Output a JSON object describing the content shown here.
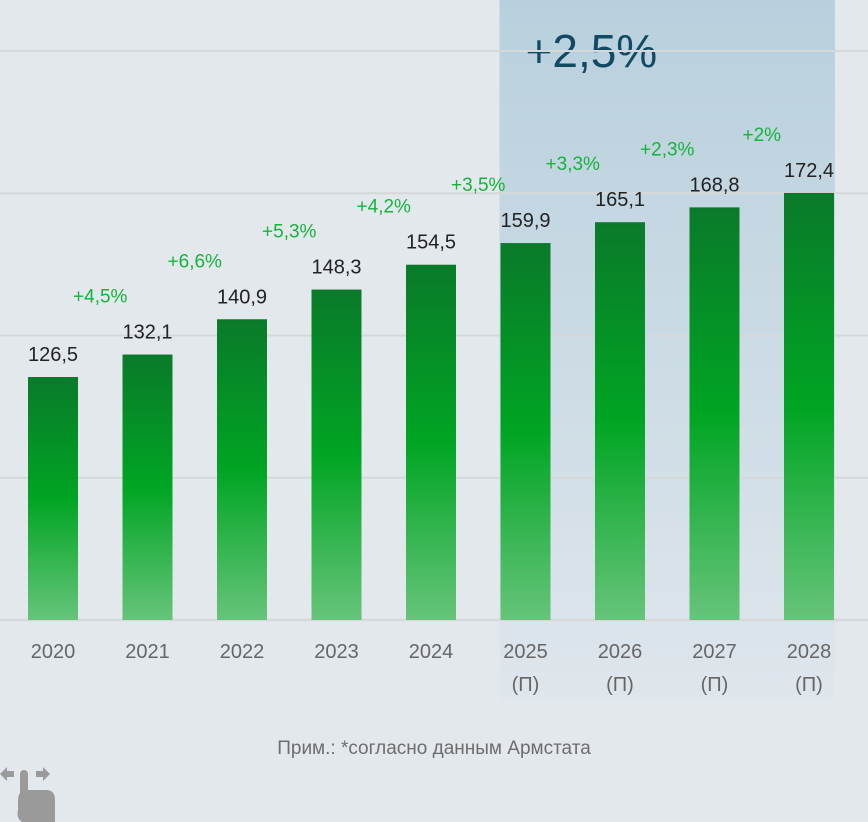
{
  "chart_data": {
    "type": "bar",
    "title": "",
    "xlabel": "",
    "ylabel": "",
    "categories": [
      "2020",
      "2021",
      "2022",
      "2023",
      "2024",
      "2025",
      "2026",
      "2027",
      "2028"
    ],
    "category_sublabels": [
      "",
      "",
      "",
      "",
      "",
      "(П)",
      "(П)",
      "(П)",
      "(П)"
    ],
    "values": [
      126.5,
      132.1,
      140.9,
      148.3,
      154.5,
      159.9,
      165.1,
      168.8,
      172.4
    ],
    "value_labels": [
      "126,5",
      "132,1",
      "140,9",
      "148,3",
      "154,5",
      "159,9",
      "165,1",
      "168,8",
      "172,4"
    ],
    "growth_labels": [
      "",
      "+4,5%",
      "+6,6%",
      "+5,3%",
      "+4,2%",
      "+3,5%",
      "+3,3%",
      "+2,3%",
      "+2%"
    ],
    "forecast_start_index": 5,
    "forecast_highlight_label": "+2,5%",
    "grid": true,
    "y_axis_labels_shown": false,
    "colors": {
      "bar_top": "#0a7a2a",
      "bar_mid": "#00a523",
      "bar_bottom": "#66c47a",
      "growth_text": "#16b33a",
      "value_text": "#222222",
      "highlight_bg": "#b9d1dd",
      "highlight_text": "#124a63",
      "axis_text": "#666666",
      "grid": "#d6d8da"
    }
  },
  "footnote": "Прим.: *согласно данным Армстата",
  "icons": {
    "swipe": "swipe-horizontal-hand-icon"
  }
}
